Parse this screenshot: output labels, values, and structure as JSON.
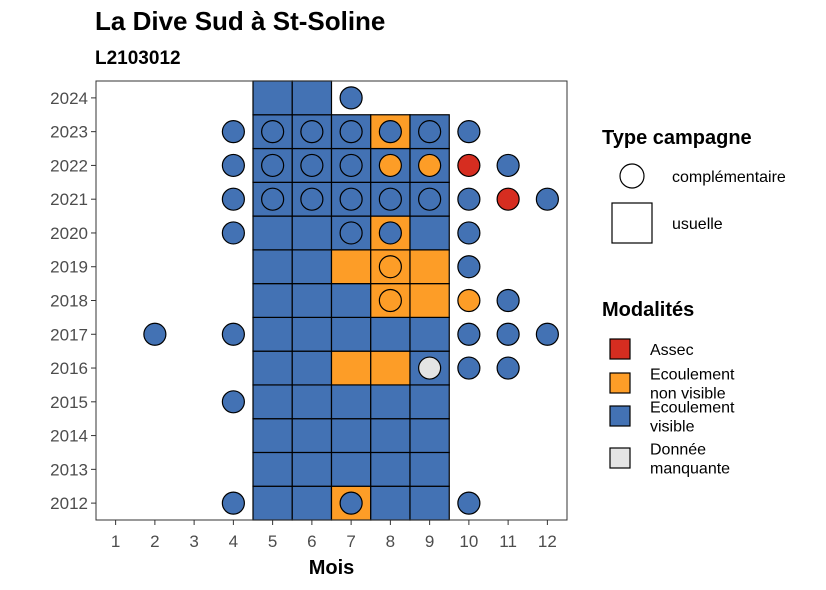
{
  "chart_data": {
    "type": "heatmap",
    "title": "La Dive Sud à St-Soline",
    "subtitle": "L2103012",
    "xlabel": "Mois",
    "ylabel": "",
    "x_ticks": [
      "1",
      "2",
      "3",
      "4",
      "5",
      "6",
      "7",
      "8",
      "9",
      "10",
      "11",
      "12"
    ],
    "y_ticks": [
      "2012",
      "2013",
      "2014",
      "2015",
      "2016",
      "2017",
      "2018",
      "2019",
      "2020",
      "2021",
      "2022",
      "2023",
      "2024"
    ],
    "xlim": [
      0.5,
      12.5
    ],
    "ylim": [
      2011.5,
      2024.5
    ],
    "colors": {
      "assec": "#d62d20",
      "non_visible": "#fd9d27",
      "visible": "#4372b4",
      "manquante": "#e4e4e4"
    },
    "legend_shape": {
      "title": "Type campagne",
      "items": [
        {
          "shape": "circle",
          "label": "complémentaire"
        },
        {
          "shape": "square",
          "label": "usuelle"
        }
      ]
    },
    "legend_fill": {
      "title": "Modalités",
      "items": [
        {
          "key": "assec",
          "lines": [
            "Assec"
          ]
        },
        {
          "key": "non_visible",
          "lines": [
            "Ecoulement",
            "non visible"
          ]
        },
        {
          "key": "visible",
          "lines": [
            "Ecoulement",
            "visible"
          ]
        },
        {
          "key": "manquante",
          "lines": [
            "Donnée",
            "manquante"
          ]
        }
      ]
    },
    "usuelle": [
      {
        "year": 2012,
        "months": [
          "visible",
          "visible",
          "non_visible",
          "visible",
          "visible"
        ]
      },
      {
        "year": 2013,
        "months": [
          "visible",
          "visible",
          "visible",
          "visible",
          "visible"
        ]
      },
      {
        "year": 2014,
        "months": [
          "visible",
          "visible",
          "visible",
          "visible",
          "visible"
        ]
      },
      {
        "year": 2015,
        "months": [
          "visible",
          "visible",
          "visible",
          "visible",
          "visible"
        ]
      },
      {
        "year": 2016,
        "months": [
          "visible",
          "visible",
          "non_visible",
          "non_visible",
          "visible"
        ]
      },
      {
        "year": 2017,
        "months": [
          "visible",
          "visible",
          "visible",
          "visible",
          "visible"
        ]
      },
      {
        "year": 2018,
        "months": [
          "visible",
          "visible",
          "visible",
          "non_visible",
          "non_visible"
        ]
      },
      {
        "year": 2019,
        "months": [
          "visible",
          "visible",
          "non_visible",
          "non_visible",
          "non_visible"
        ]
      },
      {
        "year": 2020,
        "months": [
          "visible",
          "visible",
          "visible",
          "non_visible",
          "visible"
        ]
      },
      {
        "year": 2021,
        "months": [
          "visible",
          "visible",
          "visible",
          "visible",
          "visible"
        ]
      },
      {
        "year": 2022,
        "months": [
          "visible",
          "visible",
          "visible",
          "visible",
          "visible"
        ]
      },
      {
        "year": 2023,
        "months": [
          "visible",
          "visible",
          "visible",
          "non_visible",
          "visible"
        ]
      },
      {
        "year": 2024,
        "months": [
          "visible",
          "visible",
          null,
          null,
          null
        ]
      }
    ],
    "usuelle_first_month": 5,
    "complementaire": [
      {
        "month": 4,
        "year": 2012,
        "value": "visible"
      },
      {
        "month": 7,
        "year": 2012,
        "value": "visible"
      },
      {
        "month": 10,
        "year": 2012,
        "value": "visible"
      },
      {
        "month": 4,
        "year": 2015,
        "value": "visible"
      },
      {
        "month": 9,
        "year": 2016,
        "value": "manquante"
      },
      {
        "month": 10,
        "year": 2016,
        "value": "visible"
      },
      {
        "month": 11,
        "year": 2016,
        "value": "visible"
      },
      {
        "month": 2,
        "year": 2017,
        "value": "visible"
      },
      {
        "month": 4,
        "year": 2017,
        "value": "visible"
      },
      {
        "month": 10,
        "year": 2017,
        "value": "visible"
      },
      {
        "month": 11,
        "year": 2017,
        "value": "visible"
      },
      {
        "month": 12,
        "year": 2017,
        "value": "visible"
      },
      {
        "month": 8,
        "year": 2018,
        "value": "non_visible"
      },
      {
        "month": 10,
        "year": 2018,
        "value": "non_visible"
      },
      {
        "month": 11,
        "year": 2018,
        "value": "visible"
      },
      {
        "month": 8,
        "year": 2019,
        "value": "non_visible"
      },
      {
        "month": 10,
        "year": 2019,
        "value": "visible"
      },
      {
        "month": 4,
        "year": 2020,
        "value": "visible"
      },
      {
        "month": 7,
        "year": 2020,
        "value": "visible"
      },
      {
        "month": 8,
        "year": 2020,
        "value": "visible"
      },
      {
        "month": 10,
        "year": 2020,
        "value": "visible"
      },
      {
        "month": 4,
        "year": 2021,
        "value": "visible"
      },
      {
        "month": 5,
        "year": 2021,
        "value": "visible"
      },
      {
        "month": 6,
        "year": 2021,
        "value": "visible"
      },
      {
        "month": 7,
        "year": 2021,
        "value": "visible"
      },
      {
        "month": 8,
        "year": 2021,
        "value": "visible"
      },
      {
        "month": 9,
        "year": 2021,
        "value": "visible"
      },
      {
        "month": 10,
        "year": 2021,
        "value": "visible"
      },
      {
        "month": 11,
        "year": 2021,
        "value": "assec"
      },
      {
        "month": 12,
        "year": 2021,
        "value": "visible"
      },
      {
        "month": 4,
        "year": 2022,
        "value": "visible"
      },
      {
        "month": 5,
        "year": 2022,
        "value": "visible"
      },
      {
        "month": 6,
        "year": 2022,
        "value": "visible"
      },
      {
        "month": 7,
        "year": 2022,
        "value": "visible"
      },
      {
        "month": 8,
        "year": 2022,
        "value": "non_visible"
      },
      {
        "month": 9,
        "year": 2022,
        "value": "non_visible"
      },
      {
        "month": 10,
        "year": 2022,
        "value": "assec"
      },
      {
        "month": 11,
        "year": 2022,
        "value": "visible"
      },
      {
        "month": 4,
        "year": 2023,
        "value": "visible"
      },
      {
        "month": 5,
        "year": 2023,
        "value": "visible"
      },
      {
        "month": 6,
        "year": 2023,
        "value": "visible"
      },
      {
        "month": 7,
        "year": 2023,
        "value": "visible"
      },
      {
        "month": 8,
        "year": 2023,
        "value": "visible"
      },
      {
        "month": 9,
        "year": 2023,
        "value": "visible"
      },
      {
        "month": 10,
        "year": 2023,
        "value": "visible"
      },
      {
        "month": 7,
        "year": 2024,
        "value": "visible"
      }
    ]
  }
}
